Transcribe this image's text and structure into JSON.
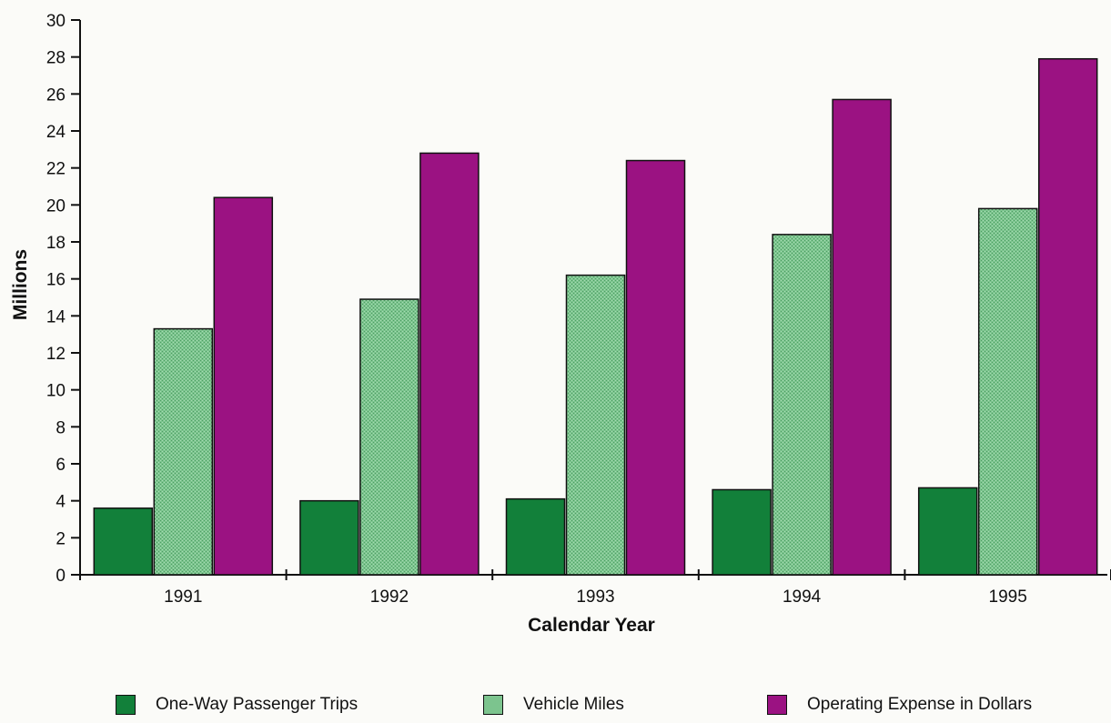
{
  "chart_data": {
    "type": "bar",
    "title": "",
    "xlabel": "Calendar Year",
    "ylabel": "Millions",
    "ylim": [
      0,
      30
    ],
    "yticks": [
      0,
      2,
      4,
      6,
      8,
      10,
      12,
      14,
      16,
      18,
      20,
      22,
      24,
      26,
      28,
      30
    ],
    "grid": false,
    "legend_position": "bottom",
    "categories": [
      "1991",
      "1992",
      "1993",
      "1994",
      "1995"
    ],
    "series": [
      {
        "name": "One-Way Passenger Trips",
        "color": "#12803a",
        "values": [
          3.6,
          4.0,
          4.1,
          4.6,
          4.7
        ]
      },
      {
        "name": "Vehicle Miles",
        "color": "#7cc48e",
        "values": [
          13.3,
          14.9,
          16.2,
          18.4,
          19.8
        ]
      },
      {
        "name": "Operating Expense in Dollars",
        "color": "#9b1282",
        "values": [
          20.4,
          22.8,
          22.4,
          25.7,
          27.9
        ]
      }
    ]
  }
}
